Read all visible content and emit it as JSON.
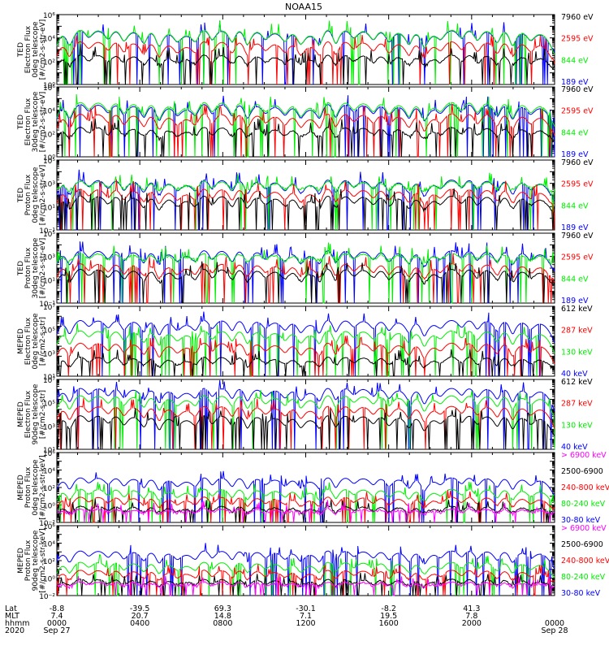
{
  "title": "NOAA15",
  "colors": {
    "black": "#000000",
    "red": "#ff0000",
    "green": "#00ee00",
    "blue": "#0000ff",
    "magenta": "#ff00ff"
  },
  "chart_data": [
    {
      "type": "line",
      "ylabel": [
        "TED",
        "Electron Flux",
        "0deg telescope",
        "[#/cm2-s-str-eV]"
      ],
      "yscale": "log",
      "ylim": [
        1,
        1000000
      ],
      "yticks": [
        "10⁰",
        "10²",
        "10⁴",
        "10⁶"
      ],
      "legend_placement": "right",
      "series": [
        {
          "name": "7960 eV",
          "color": "#000000",
          "base": 30,
          "spike": 8
        },
        {
          "name": "2595 eV",
          "color": "#ff0000",
          "base": 60,
          "spike": 60
        },
        {
          "name": "844 eV",
          "color": "#00ee00",
          "base": 120,
          "spike": 300
        },
        {
          "name": "189 eV",
          "color": "#0000ff",
          "base": 400,
          "spike": 80
        }
      ]
    },
    {
      "type": "line",
      "ylabel": [
        "TED",
        "Electron Flux",
        "30deg telescope",
        "[#/cm2-s-str-eV]"
      ],
      "yscale": "log",
      "ylim": [
        1,
        1000000
      ],
      "yticks": [
        "10⁰",
        "10²",
        "10⁴",
        "10⁶"
      ],
      "legend_placement": "right",
      "series": [
        {
          "name": "7960 eV",
          "color": "#000000",
          "base": 30,
          "spike": 8
        },
        {
          "name": "2595 eV",
          "color": "#ff0000",
          "base": 60,
          "spike": 60
        },
        {
          "name": "844 eV",
          "color": "#00ee00",
          "base": 120,
          "spike": 300
        },
        {
          "name": "189 eV",
          "color": "#0000ff",
          "base": 300,
          "spike": 80
        }
      ]
    },
    {
      "type": "line",
      "ylabel": [
        "TED",
        "Proton Flux",
        "0deg telescope",
        "[#/cm2-s-str-eV]"
      ],
      "yscale": "log",
      "ylim": [
        0.1,
        100000
      ],
      "yticks": [
        "10⁻¹",
        "10¹",
        "10³",
        "10⁵"
      ],
      "legend_placement": "right",
      "series": [
        {
          "name": "7960 eV",
          "color": "#000000",
          "base": 3,
          "spike": 20
        },
        {
          "name": "2595 eV",
          "color": "#ff0000",
          "base": 6,
          "spike": 40
        },
        {
          "name": "844 eV",
          "color": "#00ee00",
          "base": 200,
          "spike": 5
        },
        {
          "name": "189 eV",
          "color": "#0000ff",
          "base": 30,
          "spike": 50
        }
      ]
    },
    {
      "type": "line",
      "ylabel": [
        "TED",
        "Proton Flux",
        "30deg telescope",
        "[#/cm2-s-str-eV]"
      ],
      "yscale": "log",
      "ylim": [
        0.1,
        100000
      ],
      "yticks": [
        "10⁻¹",
        "10¹",
        "10³",
        "10⁵"
      ],
      "legend_placement": "right",
      "series": [
        {
          "name": "7960 eV",
          "color": "#000000",
          "base": 3,
          "spike": 20
        },
        {
          "name": "2595 eV",
          "color": "#ff0000",
          "base": 6,
          "spike": 30
        },
        {
          "name": "844 eV",
          "color": "#00ee00",
          "base": 300,
          "spike": 4
        },
        {
          "name": "189 eV",
          "color": "#0000ff",
          "base": 60,
          "spike": 40
        }
      ]
    },
    {
      "type": "line",
      "ylabel": [
        "MEPED",
        "Electron Flux",
        "0deg telescope",
        "[#/cm2-s-str]"
      ],
      "yscale": "log",
      "ylim": [
        10,
        100000000
      ],
      "yticks": [
        "10¹",
        "10³",
        "10⁵",
        "10⁷"
      ],
      "legend_placement": "right",
      "series": [
        {
          "name": "612 keV",
          "color": "#000000",
          "base": 60,
          "spike": 10
        },
        {
          "name": "287 keV",
          "color": "#ff0000",
          "base": 80,
          "spike": 200
        },
        {
          "name": "130 keV",
          "color": "#00ee00",
          "base": 90,
          "spike": 3000
        },
        {
          "name": "40 keV",
          "color": "#0000ff",
          "base": 100,
          "spike": 30000
        }
      ]
    },
    {
      "type": "line",
      "ylabel": [
        "MEPED",
        "Electron Flux",
        "90deg telescope",
        "[#/cm2-s-str]"
      ],
      "yscale": "log",
      "ylim": [
        10,
        100000000
      ],
      "yticks": [
        "10¹",
        "10³",
        "10⁵",
        "10⁷"
      ],
      "legend_placement": "right",
      "series": [
        {
          "name": "612 keV",
          "color": "#000000",
          "base": 60,
          "spike": 300
        },
        {
          "name": "287 keV",
          "color": "#ff0000",
          "base": 80,
          "spike": 2000
        },
        {
          "name": "130 keV",
          "color": "#00ee00",
          "base": 90,
          "spike": 20000
        },
        {
          "name": "40 keV",
          "color": "#0000ff",
          "base": 100,
          "spike": 100000
        }
      ]
    },
    {
      "type": "line",
      "ylabel": [
        "MEPED",
        "Proton Flux",
        "0deg telescope",
        "[#/cm2-s-str-keV]"
      ],
      "yscale": "log",
      "ylim": [
        0.01,
        1000000
      ],
      "yticks": [
        "10⁻²",
        "10⁰",
        "10²",
        "10⁴",
        "10⁶"
      ],
      "legend_placement": "right",
      "series": [
        {
          "name": "> 6900 keV",
          "color": "#ff00ff",
          "base": 0.1,
          "spike": 2
        },
        {
          "name": "2500-6900",
          "color": "#000000",
          "base": 0.1,
          "spike": 5
        },
        {
          "name": "240-800 keV",
          "color": "#ff0000",
          "base": 0.3,
          "spike": 20
        },
        {
          "name": "80-240 keV",
          "color": "#00ee00",
          "base": 1,
          "spike": 50
        },
        {
          "name": "30-80 keV",
          "color": "#0000ff",
          "base": 5,
          "spike": 200
        }
      ]
    },
    {
      "type": "line",
      "ylabel": [
        "MEPED",
        "Proton Flux",
        "90deg telescope",
        "[#/cm2-s-str-keV]"
      ],
      "yscale": "log",
      "ylim": [
        0.01,
        1000000
      ],
      "yticks": [
        "10⁻²",
        "10⁰",
        "10²",
        "10⁴",
        "10⁶"
      ],
      "legend_placement": "right",
      "series": [
        {
          "name": "> 6900 keV",
          "color": "#ff00ff",
          "base": 0.1,
          "spike": 2
        },
        {
          "name": "2500-6900",
          "color": "#000000",
          "base": 0.1,
          "spike": 5
        },
        {
          "name": "240-800 keV",
          "color": "#ff0000",
          "base": 0.3,
          "spike": 20
        },
        {
          "name": "80-240 keV",
          "color": "#00ee00",
          "base": 1,
          "spike": 50
        },
        {
          "name": "30-80 keV",
          "color": "#0000ff",
          "base": 5,
          "spike": 200
        }
      ]
    }
  ],
  "x_axis": {
    "row_labels": [
      "Lat",
      "MLT",
      "hhmm",
      "2020"
    ],
    "ticks": [
      {
        "values": [
          "-8.8",
          "7.4",
          "0000",
          "Sep 27"
        ]
      },
      {
        "values": [
          "-39.5",
          "20.7",
          "0400",
          ""
        ]
      },
      {
        "values": [
          "69.3",
          "14.8",
          "0800",
          ""
        ]
      },
      {
        "values": [
          "-30.1",
          "7.1",
          "1200",
          ""
        ]
      },
      {
        "values": [
          "-8.2",
          "19.5",
          "1600",
          ""
        ]
      },
      {
        "values": [
          "41.3",
          "7.8",
          "2000",
          ""
        ]
      },
      {
        "values": [
          "",
          "",
          "0000",
          "Sep 28"
        ]
      }
    ]
  }
}
